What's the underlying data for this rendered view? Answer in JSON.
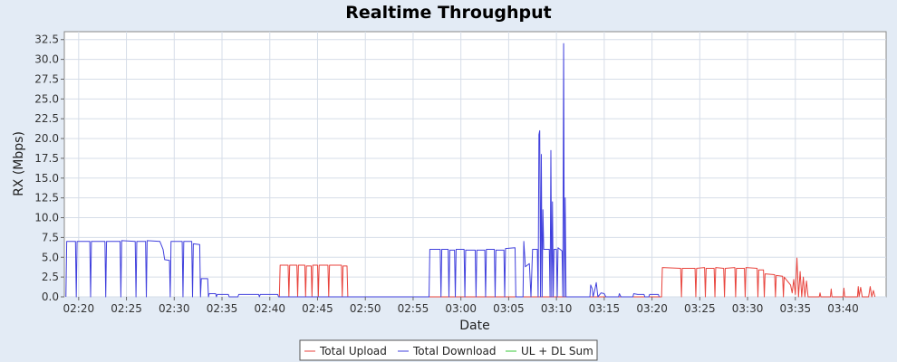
{
  "chart_data": {
    "type": "line",
    "title": "Realtime Throughput",
    "xlabel": "Date",
    "ylabel": "RX (Mbps)",
    "xlim": [
      "02:18:30",
      "03:44:30"
    ],
    "ylim": [
      0,
      33.5
    ],
    "grid": true,
    "legend_position": "bottom-center",
    "x_ticks": [
      "02:20",
      "02:25",
      "02:30",
      "02:35",
      "02:40",
      "02:45",
      "02:50",
      "02:55",
      "03:00",
      "03:05",
      "03:10",
      "03:15",
      "03:20",
      "03:25",
      "03:30",
      "03:35",
      "03:40"
    ],
    "y_ticks": [
      "0.0",
      "2.5",
      "5.0",
      "7.5",
      "10.0",
      "12.5",
      "15.0",
      "17.5",
      "20.0",
      "22.5",
      "25.0",
      "27.5",
      "30.0",
      "32.5"
    ],
    "series": [
      {
        "name": "Total Upload",
        "color": "#e8433c",
        "points": [
          [
            "02:41:00",
            0
          ],
          [
            "02:41:05",
            4.0
          ],
          [
            "02:41:55",
            4.0
          ],
          [
            "02:42:00",
            0
          ],
          [
            "02:42:05",
            4.0
          ],
          [
            "02:42:50",
            4.0
          ],
          [
            "02:42:55",
            0
          ],
          [
            "02:43:00",
            4.0
          ],
          [
            "02:43:40",
            4.0
          ],
          [
            "02:43:45",
            0
          ],
          [
            "02:43:50",
            3.9
          ],
          [
            "02:44:20",
            3.9
          ],
          [
            "02:44:25",
            0
          ],
          [
            "02:44:30",
            4.0
          ],
          [
            "02:45:00",
            4.0
          ],
          [
            "02:45:05",
            0
          ],
          [
            "02:45:10",
            4.0
          ],
          [
            "02:46:05",
            4.0
          ],
          [
            "02:46:10",
            0
          ],
          [
            "02:46:15",
            4.0
          ],
          [
            "02:47:30",
            4.0
          ],
          [
            "02:47:35",
            0
          ],
          [
            "02:47:40",
            3.9
          ],
          [
            "02:48:05",
            3.9
          ],
          [
            "02:48:10",
            0
          ],
          [
            "03:21:00",
            0
          ],
          [
            "03:21:05",
            3.7
          ],
          [
            "03:23:00",
            3.6
          ],
          [
            "03:23:05",
            0
          ],
          [
            "03:23:10",
            3.6
          ],
          [
            "03:24:30",
            3.6
          ],
          [
            "03:24:35",
            0
          ],
          [
            "03:24:40",
            3.6
          ],
          [
            "03:25:30",
            3.7
          ],
          [
            "03:25:35",
            0
          ],
          [
            "03:25:40",
            3.6
          ],
          [
            "03:26:30",
            3.6
          ],
          [
            "03:26:35",
            0
          ],
          [
            "03:26:40",
            3.7
          ],
          [
            "03:27:30",
            3.6
          ],
          [
            "03:27:35",
            0
          ],
          [
            "03:27:40",
            3.6
          ],
          [
            "03:28:40",
            3.7
          ],
          [
            "03:28:45",
            0
          ],
          [
            "03:28:50",
            3.6
          ],
          [
            "03:29:40",
            3.6
          ],
          [
            "03:29:45",
            0
          ],
          [
            "03:29:50",
            3.7
          ],
          [
            "03:31:00",
            3.6
          ],
          [
            "03:31:05",
            0
          ],
          [
            "03:31:10",
            3.4
          ],
          [
            "03:31:40",
            3.4
          ],
          [
            "03:31:45",
            0
          ],
          [
            "03:31:50",
            2.9
          ],
          [
            "03:32:50",
            2.8
          ],
          [
            "03:32:55",
            0
          ],
          [
            "03:33:00",
            2.7
          ],
          [
            "03:33:40",
            2.6
          ],
          [
            "03:33:45",
            0
          ],
          [
            "03:33:50",
            2.5
          ],
          [
            "03:34:30",
            1.5
          ],
          [
            "03:34:40",
            0.5
          ],
          [
            "03:34:50",
            2.2
          ],
          [
            "03:35:00",
            0.3
          ],
          [
            "03:35:10",
            4.9
          ],
          [
            "03:35:20",
            0
          ],
          [
            "03:35:30",
            3.2
          ],
          [
            "03:35:40",
            0
          ],
          [
            "03:35:50",
            2.5
          ],
          [
            "03:36:00",
            0
          ],
          [
            "03:36:10",
            2.0
          ],
          [
            "03:36:20",
            0
          ],
          [
            "03:37:30",
            0
          ],
          [
            "03:37:35",
            0.5
          ],
          [
            "03:37:40",
            0
          ],
          [
            "03:38:40",
            0
          ],
          [
            "03:38:45",
            1.0
          ],
          [
            "03:38:50",
            0
          ],
          [
            "03:40:00",
            0
          ],
          [
            "03:40:05",
            1.1
          ],
          [
            "03:40:10",
            0
          ],
          [
            "03:41:30",
            0
          ],
          [
            "03:41:35",
            1.3
          ],
          [
            "03:41:40",
            0
          ],
          [
            "03:41:50",
            1.2
          ],
          [
            "03:42:00",
            0
          ],
          [
            "03:42:40",
            0
          ],
          [
            "03:42:50",
            1.3
          ],
          [
            "03:43:00",
            0
          ],
          [
            "03:43:10",
            0.8
          ],
          [
            "03:43:20",
            0
          ]
        ]
      },
      {
        "name": "Total Download",
        "color": "#4040dd",
        "points": [
          [
            "02:18:40",
            0
          ],
          [
            "02:18:45",
            7.0
          ],
          [
            "02:19:40",
            7.0
          ],
          [
            "02:19:45",
            0
          ],
          [
            "02:19:50",
            7.0
          ],
          [
            "02:21:10",
            7.0
          ],
          [
            "02:21:15",
            0
          ],
          [
            "02:21:20",
            7.0
          ],
          [
            "02:22:45",
            7.0
          ],
          [
            "02:22:50",
            0
          ],
          [
            "02:22:55",
            7.0
          ],
          [
            "02:24:20",
            7.0
          ],
          [
            "02:24:25",
            0
          ],
          [
            "02:24:30",
            7.1
          ],
          [
            "02:25:55",
            7.0
          ],
          [
            "02:26:00",
            0
          ],
          [
            "02:26:05",
            7.0
          ],
          [
            "02:27:00",
            7.0
          ],
          [
            "02:27:05",
            0
          ],
          [
            "02:27:10",
            7.1
          ],
          [
            "02:28:30",
            7.0
          ],
          [
            "02:28:50",
            6.0
          ],
          [
            "02:29:00",
            4.7
          ],
          [
            "02:29:30",
            4.6
          ],
          [
            "02:29:35",
            0
          ],
          [
            "02:29:40",
            7.0
          ],
          [
            "02:30:50",
            7.0
          ],
          [
            "02:30:55",
            0
          ],
          [
            "02:31:00",
            7.0
          ],
          [
            "02:31:50",
            7.0
          ],
          [
            "02:31:55",
            0
          ],
          [
            "02:32:00",
            6.7
          ],
          [
            "02:32:40",
            6.6
          ],
          [
            "02:32:45",
            0
          ],
          [
            "02:32:50",
            2.3
          ],
          [
            "02:33:30",
            2.3
          ],
          [
            "02:33:35",
            0
          ],
          [
            "02:33:40",
            0.4
          ],
          [
            "02:34:20",
            0.4
          ],
          [
            "02:34:25",
            0
          ],
          [
            "02:34:30",
            0.3
          ],
          [
            "02:35:40",
            0.3
          ],
          [
            "02:35:45",
            0
          ],
          [
            "02:36:40",
            0
          ],
          [
            "02:36:45",
            0.3
          ],
          [
            "02:38:50",
            0.3
          ],
          [
            "02:38:55",
            0
          ],
          [
            "02:39:00",
            0.3
          ],
          [
            "02:40:50",
            0.3
          ],
          [
            "02:40:55",
            0
          ],
          [
            "02:56:40",
            0
          ],
          [
            "02:56:45",
            6.0
          ],
          [
            "02:57:50",
            6.0
          ],
          [
            "02:57:55",
            0
          ],
          [
            "02:58:00",
            6.0
          ],
          [
            "02:58:40",
            6.0
          ],
          [
            "02:58:45",
            0
          ],
          [
            "02:58:50",
            5.9
          ],
          [
            "02:59:20",
            5.9
          ],
          [
            "02:59:25",
            0
          ],
          [
            "02:59:30",
            6.0
          ],
          [
            "03:00:20",
            6.0
          ],
          [
            "03:00:25",
            0
          ],
          [
            "03:00:30",
            5.9
          ],
          [
            "03:01:30",
            5.9
          ],
          [
            "03:01:35",
            0
          ],
          [
            "03:01:40",
            5.9
          ],
          [
            "03:02:30",
            5.9
          ],
          [
            "03:02:35",
            0
          ],
          [
            "03:02:40",
            6.0
          ],
          [
            "03:03:30",
            6.0
          ],
          [
            "03:03:35",
            0
          ],
          [
            "03:03:40",
            5.9
          ],
          [
            "03:04:30",
            5.9
          ],
          [
            "03:04:35",
            0
          ],
          [
            "03:04:40",
            6.1
          ],
          [
            "03:05:40",
            6.2
          ],
          [
            "03:05:45",
            0
          ],
          [
            "03:06:30",
            0
          ],
          [
            "03:06:35",
            7.0
          ],
          [
            "03:06:45",
            3.8
          ],
          [
            "03:07:10",
            4.2
          ],
          [
            "03:07:20",
            0
          ],
          [
            "03:07:30",
            6.0
          ],
          [
            "03:08:00",
            6.0
          ],
          [
            "03:08:05",
            0
          ],
          [
            "03:08:10",
            20.5
          ],
          [
            "03:08:15",
            21.0
          ],
          [
            "03:08:20",
            0
          ],
          [
            "03:08:25",
            18.0
          ],
          [
            "03:08:30",
            0
          ],
          [
            "03:08:35",
            11.0
          ],
          [
            "03:08:40",
            6.0
          ],
          [
            "03:09:15",
            6.0
          ],
          [
            "03:09:20",
            0
          ],
          [
            "03:09:25",
            18.5
          ],
          [
            "03:09:30",
            0
          ],
          [
            "03:09:35",
            12.0
          ],
          [
            "03:09:40",
            0
          ],
          [
            "03:09:45",
            6.0
          ],
          [
            "03:10:00",
            6.0
          ],
          [
            "03:10:05",
            0
          ],
          [
            "03:10:10",
            6.2
          ],
          [
            "03:10:35",
            5.8
          ],
          [
            "03:10:40",
            0
          ],
          [
            "03:10:45",
            32.0
          ],
          [
            "03:10:50",
            0
          ],
          [
            "03:10:55",
            12.5
          ],
          [
            "03:11:00",
            0
          ],
          [
            "03:13:30",
            0
          ],
          [
            "03:13:35",
            1.5
          ],
          [
            "03:13:45",
            1.0
          ],
          [
            "03:13:50",
            0
          ],
          [
            "03:14:00",
            0.8
          ],
          [
            "03:14:10",
            1.8
          ],
          [
            "03:14:20",
            0
          ],
          [
            "03:14:40",
            0.5
          ],
          [
            "03:15:00",
            0.4
          ],
          [
            "03:15:10",
            0
          ],
          [
            "03:16:30",
            0
          ],
          [
            "03:16:35",
            0.4
          ],
          [
            "03:16:45",
            0
          ],
          [
            "03:18:00",
            0
          ],
          [
            "03:18:05",
            0.4
          ],
          [
            "03:18:30",
            0.3
          ],
          [
            "03:19:10",
            0.3
          ],
          [
            "03:19:15",
            0
          ],
          [
            "03:19:40",
            0
          ],
          [
            "03:19:45",
            0.3
          ],
          [
            "03:20:40",
            0.3
          ],
          [
            "03:20:45",
            0
          ]
        ]
      },
      {
        "name": "UL + DL Sum",
        "color": "#38c838",
        "points": []
      }
    ]
  }
}
